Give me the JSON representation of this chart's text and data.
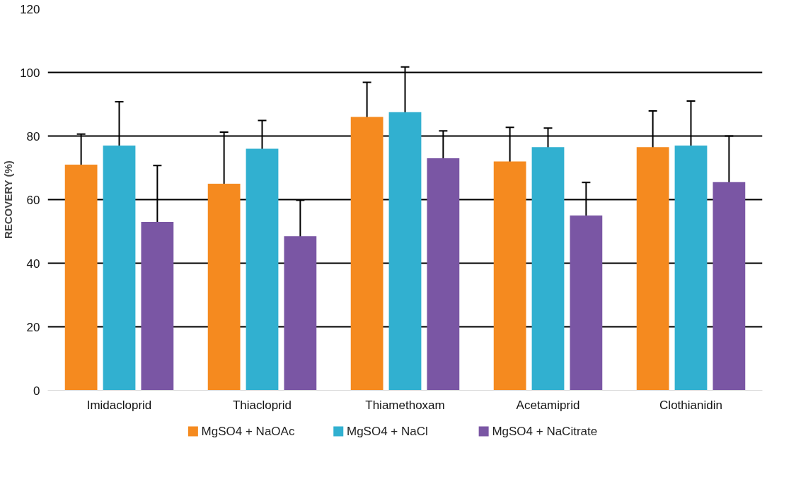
{
  "chart_data": {
    "type": "bar",
    "ylabel": "RECOVERY (%)",
    "categories": [
      "Imidacloprid",
      "Thiacloprid",
      "Thiamethoxam",
      "Acetamiprid",
      "Clothianidin"
    ],
    "series": [
      {
        "name": "MgSO4 + NaOAc",
        "color": "#f58a1f",
        "values": [
          71,
          65,
          86,
          72,
          76.5
        ],
        "errors": [
          9.6,
          16.2,
          10.9,
          10.7,
          11.4
        ]
      },
      {
        "name": "MgSO4 + NaCl",
        "color": "#31b0d0",
        "values": [
          77,
          76,
          87.5,
          76.5,
          77
        ],
        "errors": [
          13.8,
          8.9,
          14.2,
          6.0,
          14.0
        ]
      },
      {
        "name": "MgSO4 + NaCitrate",
        "color": "#7a56a4",
        "values": [
          53,
          48.5,
          73,
          55,
          65.5
        ],
        "errors": [
          17.7,
          11.3,
          8.6,
          10.4,
          14.5
        ]
      }
    ],
    "ylim": [
      0,
      120
    ],
    "yticks": [
      0,
      20,
      40,
      60,
      80,
      100,
      120
    ],
    "grid": "y",
    "legend": "bottom"
  }
}
